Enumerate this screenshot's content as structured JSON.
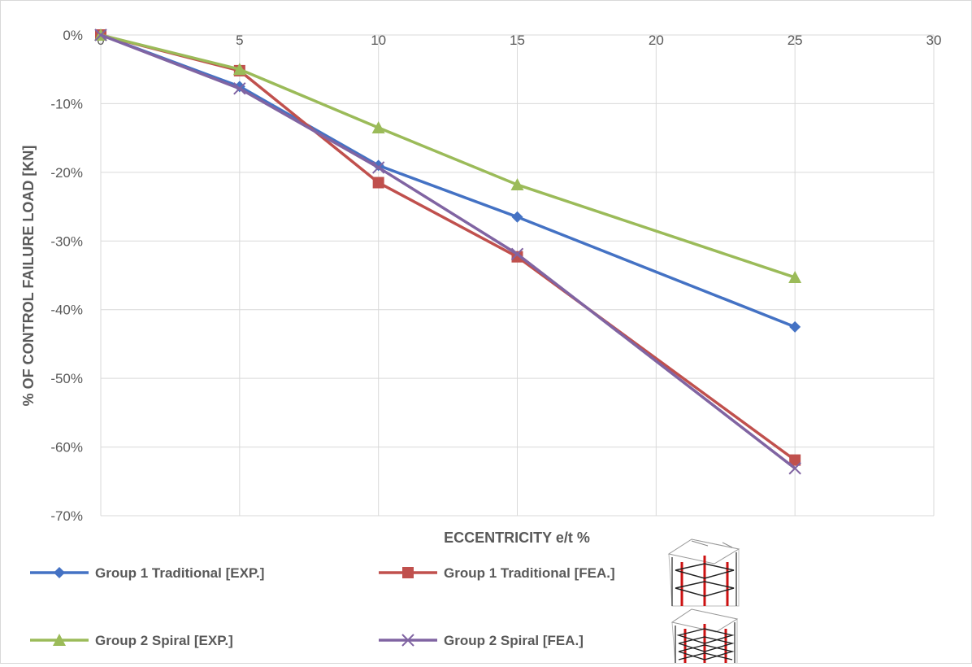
{
  "chart_data": {
    "type": "line",
    "title": "",
    "xlabel": "ECCENTRICITY e/t %",
    "ylabel": "% OF CONTROL FAILURE LOAD [KN]",
    "xlim": [
      0,
      30
    ],
    "ylim": [
      -70,
      0
    ],
    "x_ticks": [
      "0",
      "5",
      "10",
      "15",
      "20",
      "25",
      "30"
    ],
    "y_ticks": [
      "0%",
      "-10%",
      "-20%",
      "-30%",
      "-40%",
      "-50%",
      "-60%",
      "-70%"
    ],
    "grid": true,
    "legend_position": "bottom",
    "x": [
      0,
      5,
      10,
      15,
      25
    ],
    "series": [
      {
        "name": "Group 1 Traditional [EXP.]",
        "color": "#4472c4",
        "marker": "diamond",
        "values": [
          0,
          -7.5,
          -19,
          -26.5,
          -42.5
        ]
      },
      {
        "name": "Group 1 Traditional [FEA.]",
        "color": "#c0504d",
        "marker": "square",
        "values": [
          0,
          -5.2,
          -21.5,
          -32.3,
          -61.9
        ]
      },
      {
        "name": "Group 2 Spiral [EXP.]",
        "color": "#9bbb59",
        "marker": "triangle",
        "values": [
          0,
          -5,
          -13.5,
          -21.8,
          -35.3
        ]
      },
      {
        "name": "Group 2 Spiral [FEA.]",
        "color": "#8064a2",
        "marker": "x",
        "values": [
          0,
          -7.8,
          -19.3,
          -31.9,
          -63.1
        ]
      }
    ]
  }
}
